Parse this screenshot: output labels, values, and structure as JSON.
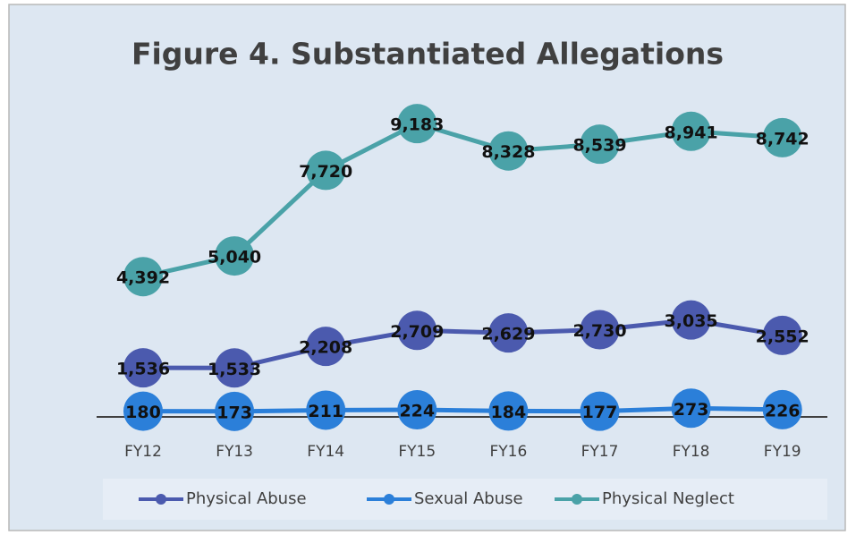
{
  "chart_data": {
    "type": "line",
    "title": "Figure 4. Substantiated  Allegations",
    "categories": [
      "FY12",
      "FY13",
      "FY14",
      "FY15",
      "FY16",
      "FY17",
      "FY18",
      "FY19"
    ],
    "ylim": [
      0,
      10000
    ],
    "legend": "bottom",
    "series": [
      {
        "name": "Physical Abuse",
        "color": "#4b5aae",
        "values": [
          1536,
          1533,
          2208,
          2709,
          2629,
          2730,
          3035,
          2552
        ],
        "value_labels": [
          "1,536",
          "1,533",
          "2,208",
          "2,709",
          "2,629",
          "2,730",
          "3,035",
          "2,552"
        ]
      },
      {
        "name": "Sexual Abuse",
        "color": "#2b7fd9",
        "values": [
          180,
          173,
          211,
          224,
          184,
          177,
          273,
          226
        ]
      },
      {
        "name": "Physical Neglect",
        "color": "#4aa2a8",
        "values": [
          4392,
          5040,
          7720,
          9183,
          8328,
          8539,
          8941,
          8742
        ],
        "value_labels": [
          "4,392",
          "5,040",
          "7,720",
          "9,183",
          "8,328",
          "8,539",
          "8,941",
          "8,742"
        ]
      }
    ]
  }
}
